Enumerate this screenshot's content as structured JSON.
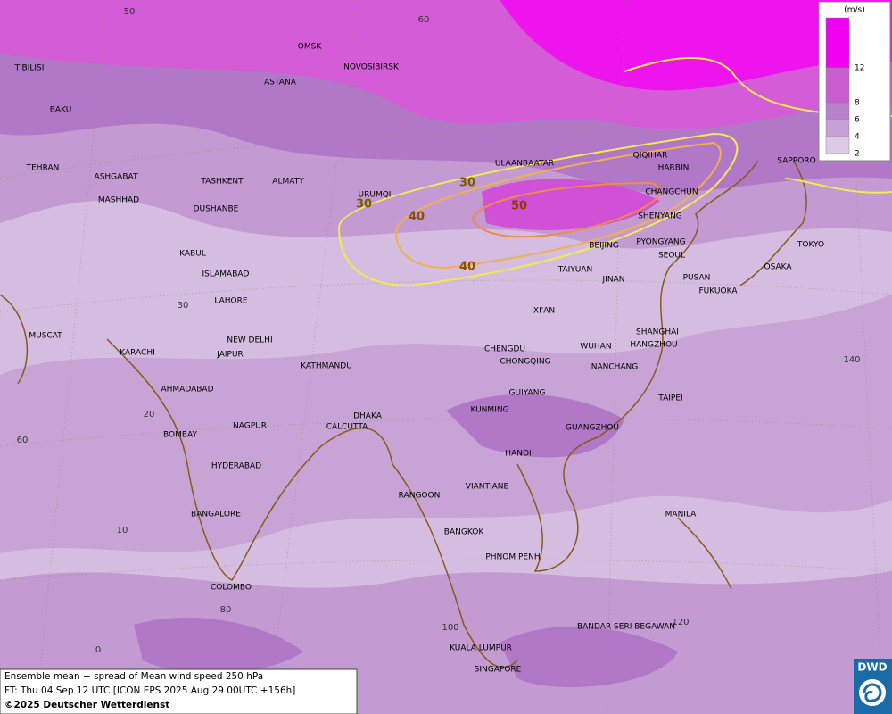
{
  "legend": {
    "unit": "(m/s)",
    "ticks": [
      2,
      4,
      6,
      8,
      12
    ],
    "colors": [
      "#dccae6",
      "#c7a1d6",
      "#b781cb",
      "#c95ccf",
      "#f000f0"
    ]
  },
  "cities": [
    "OMSK",
    "NOVOSIBIRSK",
    "ASTANA",
    "T'BILISI",
    "BAKU",
    "TEHRAN",
    "ASHGABAT",
    "MASHHAD",
    "TASHKENT",
    "ALMATY",
    "DUSHANBE",
    "URUMQI",
    "ULAANBAATAR",
    "QIQIHAR",
    "HARBIN",
    "CHANGCHUN",
    "SHENYANG",
    "SAPPORO",
    "PYONGYANG",
    "SEOUL",
    "BEIJING",
    "TOKYO",
    "OSAKA",
    "PUSAN",
    "FUKUOKA",
    "TAIYUAN",
    "JINAN",
    "KABUL",
    "ISLAMABAD",
    "LAHORE",
    "XI'AN",
    "SHANGHAI",
    "HANGZHOU",
    "MUSCAT",
    "NEW DELHI",
    "KARACHI",
    "JAIPUR",
    "KATHMANDU",
    "CHENGDU",
    "CHONGQING",
    "WUHAN",
    "NANCHANG",
    "AHMADABAD",
    "GUIYANG",
    "TAIPEI",
    "KUNMING",
    "DHAKA",
    "NAGPUR",
    "CALCUTTA",
    "GUANGZHOU",
    "BOMBAY",
    "HANOI",
    "HYDERABAD",
    "RANGOON",
    "VIANTIANE",
    "MANILA",
    "BANGALORE",
    "BANGKOK",
    "PHNOM PENH",
    "COLOMBO",
    "BANDAR SERI BEGAWAN",
    "KUALA LUMPUR",
    "SINGAPORE"
  ],
  "grid_labels": [
    50,
    60,
    30,
    20,
    10,
    0,
    60,
    80,
    100,
    120,
    140
  ],
  "contour_labels": [
    30,
    30,
    40,
    40,
    50
  ],
  "caption": {
    "line1": "Ensemble mean + spread of Mean wind speed 250 hPa",
    "line2": "FT: Thu 04 Sep 12 UTC [ICON EPS 2025 Aug 29 00UTC +156h]",
    "line3": "©2025 Deutscher Wetterdienst"
  },
  "logo": "DWD"
}
